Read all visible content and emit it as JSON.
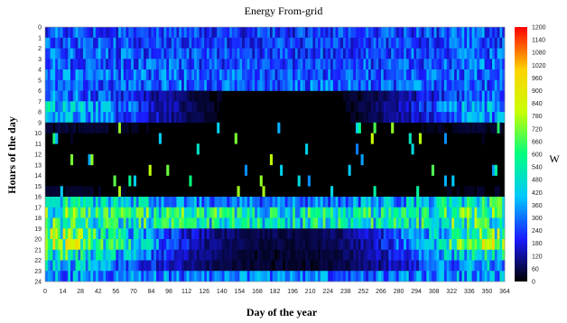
{
  "chart_data": {
    "type": "heatmap",
    "title": "Energy From-grid",
    "xlabel": "Day of the year",
    "ylabel": "Hours of the day",
    "colorbar_label": "W",
    "x_ticks": [
      0,
      14,
      28,
      42,
      56,
      70,
      84,
      98,
      112,
      126,
      140,
      154,
      168,
      182,
      196,
      210,
      224,
      238,
      252,
      266,
      280,
      294,
      308,
      322,
      336,
      350,
      364
    ],
    "y_ticks": [
      0,
      1,
      2,
      3,
      4,
      5,
      6,
      7,
      8,
      9,
      10,
      11,
      12,
      13,
      14,
      15,
      16,
      17,
      18,
      19,
      20,
      21,
      22,
      23,
      24
    ],
    "xlim": [
      0,
      364
    ],
    "ylim": [
      0,
      24
    ],
    "colorbar_ticks": [
      0,
      60,
      120,
      180,
      240,
      300,
      360,
      420,
      480,
      540,
      600,
      660,
      720,
      780,
      840,
      900,
      960,
      1020,
      1080,
      1140,
      1200
    ],
    "value_range": [
      0,
      1200
    ],
    "colormap": [
      "#000000",
      "#1a1aff",
      "#00c8ff",
      "#00ff80",
      "#c8ff00",
      "#ffd200",
      "#ff0000"
    ],
    "hourly_typical_winter_W": [
      270,
      270,
      280,
      290,
      290,
      270,
      300,
      420,
      360,
      40,
      20,
      10,
      10,
      10,
      10,
      30,
      520,
      600,
      580,
      650,
      720,
      540,
      400,
      350
    ],
    "hourly_typical_summer_W": [
      230,
      230,
      240,
      250,
      270,
      280,
      10,
      0,
      0,
      0,
      0,
      0,
      0,
      0,
      0,
      0,
      300,
      520,
      490,
      60,
      50,
      40,
      40,
      300
    ]
  }
}
